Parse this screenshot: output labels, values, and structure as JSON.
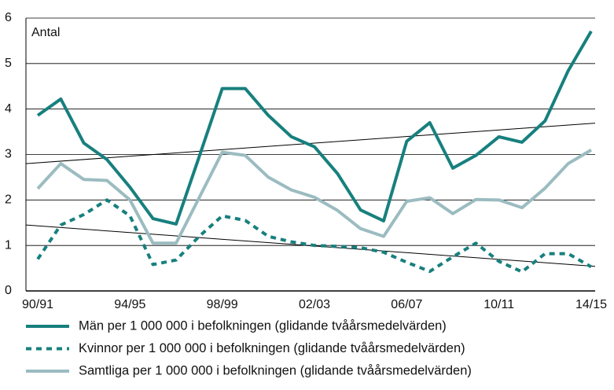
{
  "chart_data": {
    "type": "line",
    "ylabel": "Antal",
    "categories": [
      "90/91",
      null,
      null,
      null,
      "94/95",
      null,
      null,
      null,
      "98/99",
      null,
      null,
      null,
      "02/03",
      null,
      null,
      null,
      "06/07",
      null,
      null,
      null,
      "10/11",
      null,
      null,
      null,
      "14/15"
    ],
    "series": [
      {
        "name": "Män per 1 000 000 i befolkningen (glidande tvåårsmedelvärden)",
        "color": "#17807e",
        "dash": "solid",
        "values": [
          3.86,
          4.22,
          3.25,
          2.89,
          2.28,
          1.59,
          1.47,
          2.95,
          4.45,
          4.45,
          3.86,
          3.39,
          3.17,
          2.58,
          1.78,
          1.54,
          3.29,
          3.7,
          2.7,
          2.98,
          3.39,
          3.27,
          3.74,
          4.84,
          5.71
        ]
      },
      {
        "name": "Kvinnor per 1 000 000 i befolkningen (glidande tvåårsmedelvärden)",
        "color": "#17807e",
        "dash": "dotted",
        "values": [
          0.7,
          1.45,
          1.68,
          2.0,
          1.65,
          0.58,
          0.68,
          1.2,
          1.65,
          1.55,
          1.2,
          1.08,
          1.0,
          0.98,
          0.95,
          0.85,
          0.63,
          0.43,
          0.75,
          1.05,
          0.65,
          0.42,
          0.82,
          0.82,
          0.53
        ]
      },
      {
        "name": "Samtliga per 1 000 000 i befolkningen (glidande tvåårsmedelvärden)",
        "color": "#9bbcc0",
        "dash": "solid",
        "values": [
          2.25,
          2.8,
          2.45,
          2.43,
          2.0,
          1.05,
          1.05,
          2.05,
          3.05,
          2.98,
          2.5,
          2.22,
          2.06,
          1.77,
          1.37,
          1.2,
          1.97,
          2.05,
          1.7,
          2.01,
          2.0,
          1.83,
          2.26,
          2.8,
          3.1
        ]
      }
    ],
    "trend_lines": [
      {
        "color": "#000000",
        "values": [
          2.8,
          3.69
        ]
      },
      {
        "color": "#000000",
        "values": [
          1.45,
          0.54
        ]
      }
    ],
    "ylim": [
      0,
      6
    ],
    "yticks": [
      0,
      1,
      2,
      3,
      4,
      5,
      6
    ],
    "grid": true,
    "legend": "bottom"
  }
}
